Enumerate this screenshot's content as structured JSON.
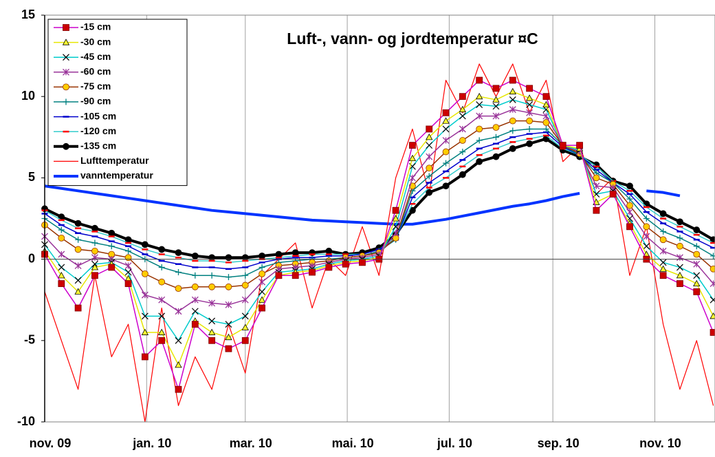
{
  "chart_data": {
    "type": "line",
    "title": "Luft-, vann- og jordtemperatur ¤C",
    "x": [
      0,
      10,
      20,
      30,
      40,
      50,
      60,
      70,
      80,
      90,
      100,
      110,
      120,
      130,
      140,
      150,
      160,
      170,
      180,
      190,
      200,
      210,
      220,
      230,
      240,
      250,
      260,
      270,
      280,
      290,
      300,
      310,
      320,
      330,
      340,
      350,
      360,
      370,
      380,
      390,
      400
    ],
    "xlim": [
      0,
      401
    ],
    "xticks": [
      {
        "value": 0,
        "label": "nov. 09"
      },
      {
        "value": 61,
        "label": "jan. 10"
      },
      {
        "value": 120,
        "label": "mar. 10"
      },
      {
        "value": 181,
        "label": "mai. 10"
      },
      {
        "value": 242,
        "label": "jul. 10"
      },
      {
        "value": 304,
        "label": "sep. 10"
      },
      {
        "value": 365,
        "label": "nov. 10"
      }
    ],
    "ylim": [
      -10,
      15
    ],
    "yticks": [
      -10,
      -5,
      0,
      5,
      10,
      15
    ],
    "grid": "x",
    "legend": "upper left",
    "series": [
      {
        "name": "-15 cm",
        "color": "#cc00cc",
        "marker": "square",
        "marker_color": "#cc0000",
        "values": [
          0.3,
          -1.5,
          -3,
          -1,
          -0.5,
          -1.5,
          -6,
          -5,
          -8,
          -4,
          -5,
          -5.5,
          -5,
          -3,
          -1,
          -1,
          -0.8,
          -0.5,
          -0.3,
          -0.2,
          0,
          3,
          7,
          8,
          9,
          10,
          11,
          10.5,
          11,
          10.5,
          10,
          7,
          7,
          3,
          4,
          2,
          0,
          -1,
          -1.5,
          -2,
          -4.5
        ]
      },
      {
        "name": "-30 cm",
        "color": "#e6e600",
        "marker": "triangle",
        "marker_color": "#ffff33",
        "values": [
          0.5,
          -1,
          -2,
          -0.5,
          -0.3,
          -1.2,
          -4.5,
          -4.5,
          -6.5,
          -3.8,
          -4.5,
          -4.8,
          -4.2,
          -2.5,
          -1,
          -0.8,
          -0.7,
          -0.4,
          -0.2,
          -0.1,
          0.1,
          2.5,
          6.2,
          7.5,
          8.5,
          9.2,
          10,
          9.8,
          10.3,
          9.9,
          9.5,
          7,
          6.8,
          3.5,
          4,
          2.2,
          0.3,
          -0.6,
          -1,
          -1.5,
          -3.5
        ]
      },
      {
        "name": "-45 cm",
        "color": "#00cccc",
        "marker": "x",
        "marker_color": "#000000",
        "values": [
          0.9,
          -0.5,
          -1.3,
          -0.3,
          -0.2,
          -0.8,
          -3.5,
          -3.5,
          -5,
          -3.2,
          -3.8,
          -4,
          -3.5,
          -2,
          -0.8,
          -0.7,
          -0.6,
          -0.3,
          -0.1,
          0,
          0.2,
          2,
          5.7,
          7,
          8,
          8.8,
          9.5,
          9.4,
          9.8,
          9.5,
          9.2,
          7,
          6.7,
          4,
          4.2,
          2.5,
          0.8,
          -0.2,
          -0.5,
          -1,
          -2.5
        ]
      },
      {
        "name": "-60 cm",
        "color": "#993399",
        "marker": "star",
        "marker_color": "#993399",
        "values": [
          1.4,
          0.3,
          -0.4,
          0.1,
          0,
          -0.4,
          -2.2,
          -2.5,
          -3.2,
          -2.5,
          -2.7,
          -2.8,
          -2.5,
          -1.4,
          -0.6,
          -0.5,
          -0.4,
          -0.2,
          0,
          0.1,
          0.3,
          1.6,
          5,
          6.3,
          7.3,
          8,
          8.8,
          8.8,
          9.2,
          9,
          8.8,
          7,
          6.6,
          4.5,
          4.4,
          2.9,
          1.4,
          0.5,
          0.1,
          -0.3,
          -1.5
        ]
      },
      {
        "name": "-75 cm",
        "color": "#993300",
        "marker": "circle",
        "marker_color": "#ffcc00",
        "values": [
          2.1,
          1.3,
          0.6,
          0.5,
          0.3,
          0.1,
          -0.9,
          -1.4,
          -1.8,
          -1.7,
          -1.7,
          -1.7,
          -1.6,
          -0.9,
          -0.4,
          -0.3,
          -0.2,
          -0.1,
          0.1,
          0.2,
          0.4,
          1.3,
          4.5,
          5.6,
          6.6,
          7.3,
          8,
          8.1,
          8.5,
          8.5,
          8.4,
          7,
          6.5,
          5,
          4.6,
          3.3,
          2,
          1.2,
          0.8,
          0.3,
          -0.6
        ]
      },
      {
        "name": "-90 cm",
        "color": "#008080",
        "marker": "plus",
        "marker_color": "#008080",
        "values": [
          2.5,
          1.8,
          1.2,
          1,
          0.8,
          0.5,
          0,
          -0.5,
          -0.8,
          -1,
          -1,
          -1.1,
          -1,
          -0.5,
          -0.2,
          -0.1,
          0,
          0,
          0.1,
          0.2,
          0.5,
          1.2,
          4.2,
          5.1,
          5.9,
          6.6,
          7.3,
          7.5,
          7.9,
          8,
          8,
          7,
          6.4,
          5.3,
          4.7,
          3.7,
          2.5,
          1.7,
          1.3,
          0.8,
          0.2
        ]
      },
      {
        "name": "-105 cm",
        "color": "#0000cc",
        "marker": "dash",
        "marker_color": "#0000cc",
        "values": [
          2.8,
          2.1,
          1.6,
          1.4,
          1.1,
          0.8,
          0.3,
          -0.1,
          -0.3,
          -0.5,
          -0.5,
          -0.6,
          -0.5,
          -0.2,
          0,
          0.1,
          0.1,
          0.2,
          0.2,
          0.3,
          0.6,
          1.2,
          3.8,
          4.7,
          5.4,
          6.1,
          6.8,
          7.1,
          7.5,
          7.7,
          7.8,
          6.9,
          6.4,
          5.5,
          4.7,
          4,
          2.9,
          2.2,
          1.7,
          1.2,
          0.7
        ]
      },
      {
        "name": "-120 cm",
        "color": "#33cccc",
        "marker": "dash",
        "marker_color": "#ff0000",
        "values": [
          3,
          2.4,
          1.9,
          1.7,
          1.4,
          1,
          0.6,
          0.3,
          0.1,
          -0.1,
          -0.1,
          -0.2,
          -0.1,
          0,
          0.1,
          0.2,
          0.3,
          0.3,
          0.3,
          0.3,
          0.6,
          1.3,
          3.4,
          4.4,
          5,
          5.7,
          6.4,
          6.8,
          7.2,
          7.4,
          7.6,
          6.8,
          6.4,
          5.7,
          4.8,
          4.2,
          3.2,
          2.5,
          2,
          1.5,
          1
        ]
      },
      {
        "name": "-135 cm",
        "color": "#000000",
        "marker": "circle",
        "marker_color": "#000000",
        "values": [
          3.1,
          2.6,
          2.2,
          1.9,
          1.6,
          1.2,
          0.9,
          0.6,
          0.4,
          0.2,
          0.1,
          0.1,
          0.1,
          0.2,
          0.3,
          0.4,
          0.4,
          0.5,
          0.3,
          0.4,
          0.7,
          1.5,
          3,
          4.1,
          4.5,
          5.2,
          6,
          6.3,
          6.8,
          7.1,
          7.4,
          6.7,
          6.3,
          5.8,
          4.8,
          4.5,
          3.4,
          2.8,
          2.3,
          1.8,
          1.2
        ]
      },
      {
        "name": "Lufttemperatur",
        "color": "#ff0000",
        "marker": "none",
        "values": [
          -2,
          -5,
          -8,
          -1,
          -6,
          -4,
          -10,
          -3,
          -9,
          -6,
          -8,
          -4,
          -7,
          -1,
          0,
          1,
          -3,
          0,
          -1,
          2,
          -1,
          5,
          8,
          4,
          11,
          9,
          12,
          10,
          12,
          9,
          11,
          6,
          7,
          4,
          5,
          -1,
          2,
          -4,
          -8,
          -5,
          -9
        ]
      },
      {
        "name": "vanntemperatur",
        "color": "#0033ff",
        "marker": "none",
        "values": [
          4.5,
          4.35,
          4.2,
          4.05,
          3.9,
          3.75,
          3.6,
          3.45,
          3.3,
          3.15,
          3,
          2.9,
          2.8,
          2.7,
          2.6,
          2.5,
          2.4,
          2.35,
          2.3,
          2.25,
          2.2,
          2.15,
          2.15,
          2.3,
          2.45,
          2.65,
          2.85,
          3.05,
          3.25,
          3.4,
          3.6,
          3.85,
          4.05,
          null,
          null,
          null,
          4.2,
          4.1,
          3.9,
          null,
          null
        ]
      }
    ]
  }
}
